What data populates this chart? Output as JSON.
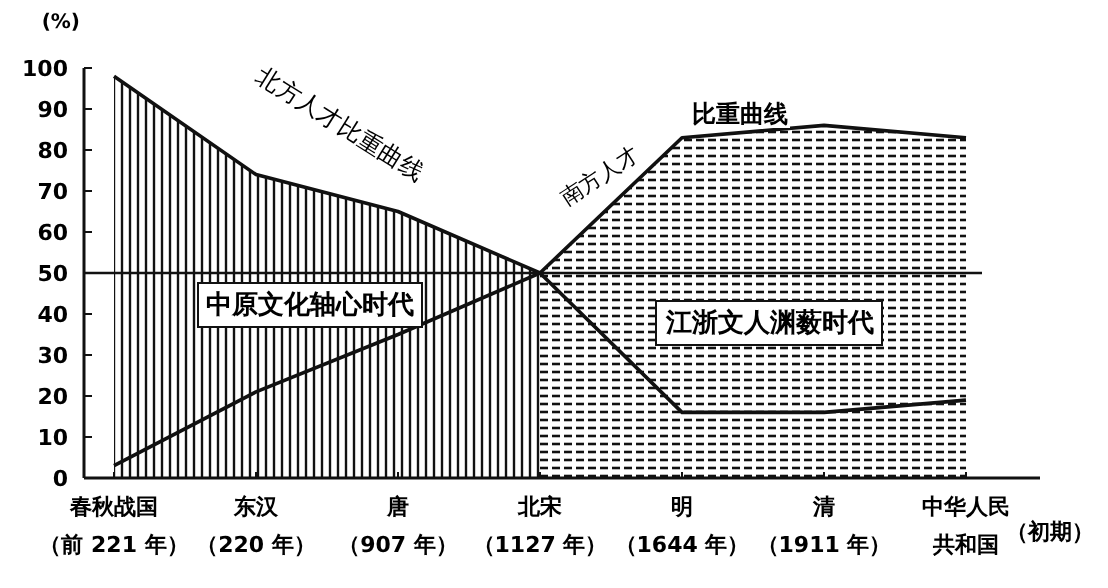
{
  "chart_data": {
    "type": "line",
    "ylabel": "(%)",
    "categories": [
      "春秋战国（前 221 年）",
      "东汉（220 年）",
      "唐（907 年）",
      "北宋（1127 年）",
      "明（1644 年）",
      "清（1911 年）",
      "中华人民共和国"
    ],
    "series": [
      {
        "type": "area",
        "color": "#111111",
        "values": [
          98,
          74,
          65,
          50,
          null,
          null,
          null
        ]
      },
      {
        "color": "#111111",
        "values": [
          null,
          null,
          null,
          50,
          16,
          16,
          19
        ]
      },
      {
        "color": "#111111",
        "values": [
          3,
          21,
          35,
          50,
          null,
          null,
          null
        ]
      },
      {
        "type": "area",
        "color": "#111111",
        "values": [
          null,
          null,
          null,
          50,
          83,
          86,
          83
        ]
      }
    ],
    "ylim": [
      0,
      100
    ],
    "yticks": [
      0,
      10,
      20,
      30,
      40,
      50,
      60,
      70,
      80,
      90,
      100
    ],
    "ref_lines": [
      {
        "axis": "y",
        "value": 50
      }
    ],
    "grid": false,
    "marker": "none",
    "line_style": "solid",
    "annotations": [
      "北方人才比重曲线",
      "南方人才",
      "比重曲线",
      "中原文化轴心时代",
      "江浙文人渊薮时代",
      "（初期）"
    ]
  }
}
